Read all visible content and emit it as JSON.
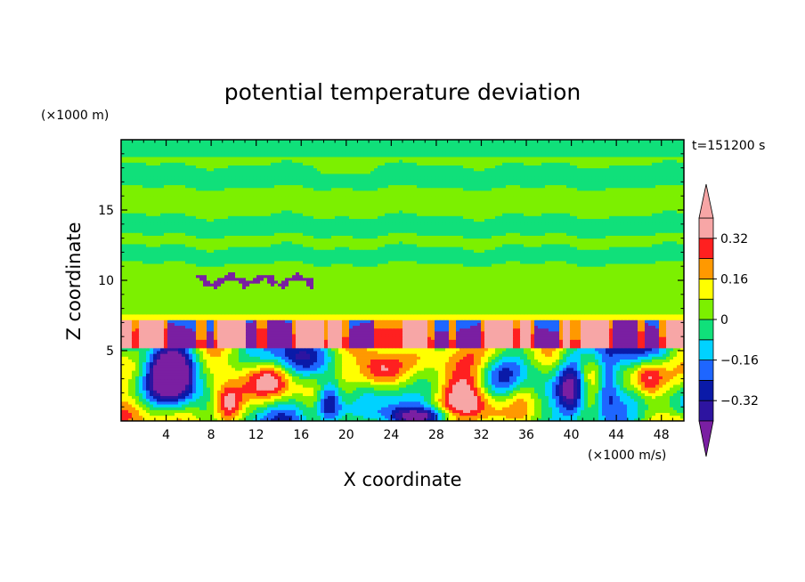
{
  "chart_data": {
    "type": "heatmap",
    "title": "potential temperature deviation",
    "xlabel": "X coordinate",
    "ylabel": "Z coordinate",
    "x_unit": "(×1000 m/s)",
    "y_unit": "(×1000 m)",
    "time_label": "t=151200 s",
    "xlim": [
      0,
      50
    ],
    "ylim": [
      0,
      20
    ],
    "x_ticks": [
      4,
      8,
      12,
      16,
      20,
      24,
      28,
      32,
      36,
      40,
      44,
      48
    ],
    "y_ticks": [
      5,
      10,
      15
    ],
    "colorbar": {
      "levels": [
        -0.4,
        -0.32,
        -0.24,
        -0.16,
        -0.08,
        0,
        0.08,
        0.16,
        0.24,
        0.32,
        0.4
      ],
      "tick_values": [
        -0.32,
        -0.16,
        0,
        0.16,
        0.32
      ],
      "tick_labels": [
        "−0.32",
        "−0.16",
        "0",
        "0.16",
        "0.32"
      ],
      "colors": [
        "#7a1fa2",
        "#2d14a0",
        "#0a1aa8",
        "#1e66ff",
        "#00d2ff",
        "#10e07a",
        "#7cf000",
        "#ffff00",
        "#ff9900",
        "#ff2020",
        "#f7a6a6"
      ],
      "extend": "both"
    },
    "regions": {
      "upper_layer": {
        "z_range": [
          7.2,
          20
        ],
        "dominant_value": 0.04
      },
      "upper_patches": {
        "z_range": [
          11,
          19
        ],
        "value": -0.04
      },
      "inversion_band": {
        "z_range": [
          5.5,
          7.2
        ],
        "values": [
          0.44,
          -0.44
        ]
      },
      "lower_layer": {
        "z_range": [
          0,
          5.5
        ],
        "values": [
          -0.44,
          -0.32,
          -0.16,
          0.04,
          0.12,
          0.2,
          0.28
        ]
      }
    }
  }
}
